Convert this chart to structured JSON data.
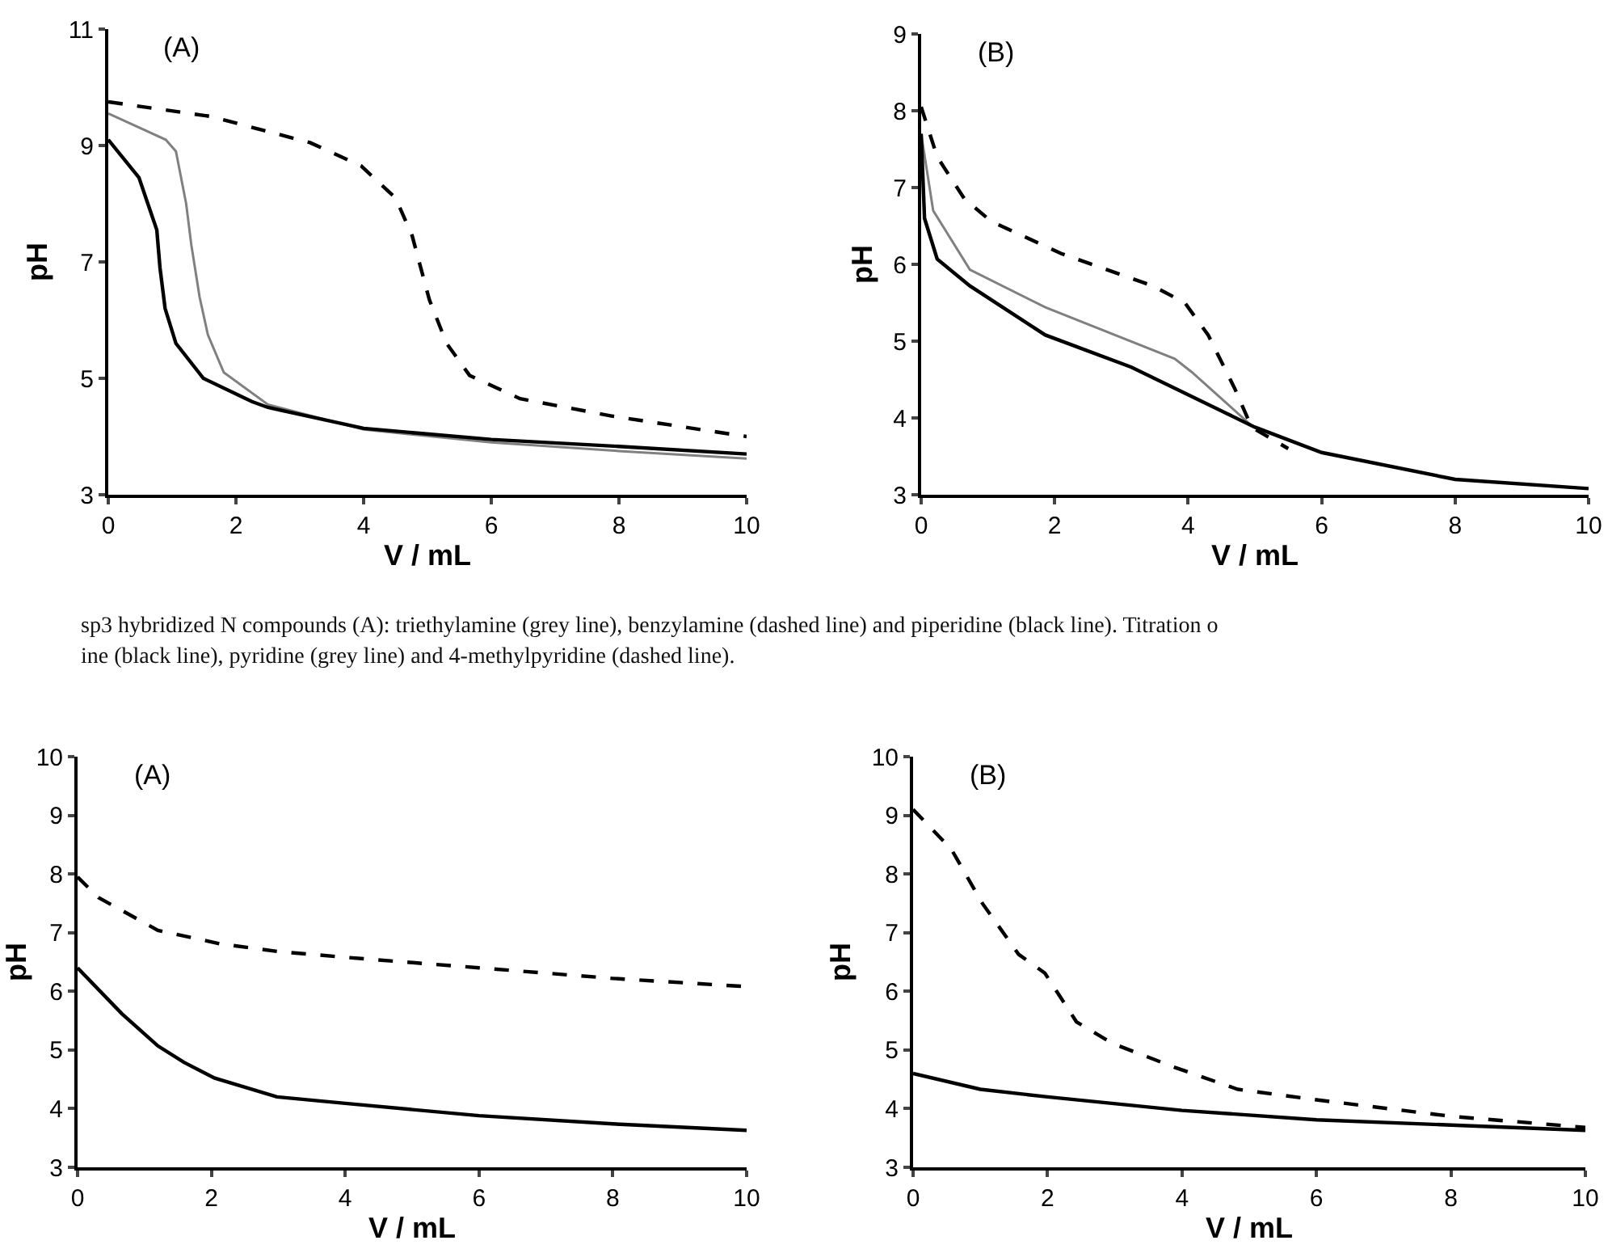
{
  "chart_data": [
    {
      "type": "line",
      "xlabel": "V / mL",
      "ylabel": "pH",
      "annotations": [
        "(A)",
        "sp3 hybridized N compounds (A): triethylamine (grey line), benzylamine (dashed line) and piperidine (black line). Titration o",
        "ine (black line), pyridine (grey line) and 4-methylpyridine (dashed line)."
      ],
      "xlim": [
        0,
        10
      ],
      "ylim": [
        3,
        11
      ],
      "xticks": [
        0,
        2,
        4,
        6,
        8,
        10
      ],
      "yticks": [
        3,
        5,
        7,
        9,
        11
      ],
      "grid": false,
      "series": [
        {
          "color": "#808080",
          "line_style": "solid",
          "x": [
            0,
            0.5,
            0.9,
            1.06,
            1.22,
            1.3,
            1.43,
            1.56,
            1.81,
            2.5,
            4,
            6,
            8,
            10
          ],
          "values": [
            9.55,
            9.3,
            9.1,
            8.9,
            8.0,
            7.3,
            6.4,
            5.75,
            5.1,
            4.55,
            4.12,
            3.9,
            3.75,
            3.62
          ]
        },
        {
          "color": "#000000",
          "line_style": "dashed",
          "x": [
            0,
            1.6,
            3.16,
            3.96,
            4.5,
            4.76,
            5.03,
            5.3,
            5.66,
            6.45,
            7.9,
            10
          ],
          "values": [
            9.75,
            9.5,
            9.05,
            8.65,
            8.1,
            7.45,
            6.35,
            5.6,
            5.05,
            4.65,
            4.35,
            4.0
          ]
        },
        {
          "color": "#000000",
          "line_style": "solid",
          "x": [
            0,
            0.48,
            0.76,
            0.81,
            0.89,
            1.06,
            1.49,
            2.25,
            2.5,
            4,
            6,
            8,
            10
          ],
          "values": [
            9.1,
            8.45,
            7.55,
            6.9,
            6.2,
            5.6,
            5.0,
            4.6,
            4.5,
            4.14,
            3.95,
            3.83,
            3.7
          ]
        }
      ]
    },
    {
      "type": "line",
      "xlabel": "V / mL",
      "ylabel": "pH",
      "annotations": [
        "(B)"
      ],
      "xlim": [
        0,
        10
      ],
      "ylim": [
        3,
        9
      ],
      "xticks": [
        0,
        2,
        4,
        6,
        8,
        10
      ],
      "yticks": [
        3,
        4,
        5,
        6,
        7,
        8,
        9
      ],
      "grid": false,
      "series": [
        {
          "color": "#000000",
          "line_style": "dashed",
          "x": [
            0,
            0.24,
            0.65,
            1.05,
            2.1,
            3.47,
            3.95,
            4.3,
            4.7,
            4.95,
            5.5
          ],
          "values": [
            8.05,
            7.4,
            6.85,
            6.56,
            6.14,
            5.72,
            5.5,
            5.08,
            4.38,
            3.88,
            3.6
          ]
        },
        {
          "color": "#808080",
          "line_style": "solid",
          "x": [
            0,
            0.18,
            0.73,
            1.86,
            3.8,
            4.05,
            4.95
          ],
          "values": [
            7.7,
            6.7,
            5.93,
            5.44,
            4.77,
            4.6,
            3.9
          ]
        },
        {
          "color": "#000000",
          "line_style": "solid",
          "x": [
            0,
            0.05,
            0.24,
            0.73,
            1.86,
            3.15,
            5.0,
            6,
            8,
            10
          ],
          "values": [
            7.7,
            6.6,
            6.07,
            5.72,
            5.08,
            4.66,
            3.88,
            3.55,
            3.2,
            3.08
          ]
        }
      ]
    },
    {
      "type": "line",
      "xlabel": "V / mL",
      "ylabel": "pH",
      "annotations": [
        "(A)"
      ],
      "xlim": [
        0,
        10
      ],
      "ylim": [
        3,
        10
      ],
      "xticks": [
        0,
        2,
        4,
        6,
        8,
        10
      ],
      "yticks": [
        3,
        4,
        5,
        6,
        7,
        8,
        9,
        10
      ],
      "grid": false,
      "series": [
        {
          "color": "#000000",
          "line_style": "dashed",
          "x": [
            0,
            0.31,
            1.2,
            2.13,
            2.98,
            4,
            6,
            8,
            10
          ],
          "values": [
            7.95,
            7.6,
            7.04,
            6.81,
            6.68,
            6.58,
            6.4,
            6.22,
            6.08
          ]
        },
        {
          "color": "#000000",
          "line_style": "solid",
          "x": [
            0,
            0.66,
            1.2,
            1.59,
            2.05,
            2.98,
            4,
            6,
            8,
            10
          ],
          "values": [
            6.4,
            5.62,
            5.07,
            4.79,
            4.52,
            4.2,
            4.09,
            3.88,
            3.74,
            3.63
          ]
        }
      ]
    },
    {
      "type": "line",
      "xlabel": "V / mL",
      "ylabel": "pH",
      "annotations": [
        "(B)"
      ],
      "xlim": [
        0,
        10
      ],
      "ylim": [
        3,
        10
      ],
      "xticks": [
        0,
        2,
        4,
        6,
        8,
        10
      ],
      "yticks": [
        3,
        4,
        5,
        6,
        7,
        8,
        9,
        10
      ],
      "grid": false,
      "series": [
        {
          "color": "#000000",
          "line_style": "dashed",
          "x": [
            0,
            0.57,
            1.03,
            1.57,
            1.96,
            2.43,
            2.97,
            3.9,
            4.83,
            6,
            8,
            10
          ],
          "values": [
            9.1,
            8.42,
            7.5,
            6.63,
            6.31,
            5.48,
            5.11,
            4.7,
            4.33,
            4.15,
            3.87,
            3.68
          ]
        },
        {
          "color": "#000000",
          "line_style": "solid",
          "x": [
            0,
            1,
            2,
            4,
            6,
            8,
            10
          ],
          "values": [
            4.6,
            4.33,
            4.2,
            3.97,
            3.81,
            3.72,
            3.63
          ]
        }
      ]
    }
  ]
}
